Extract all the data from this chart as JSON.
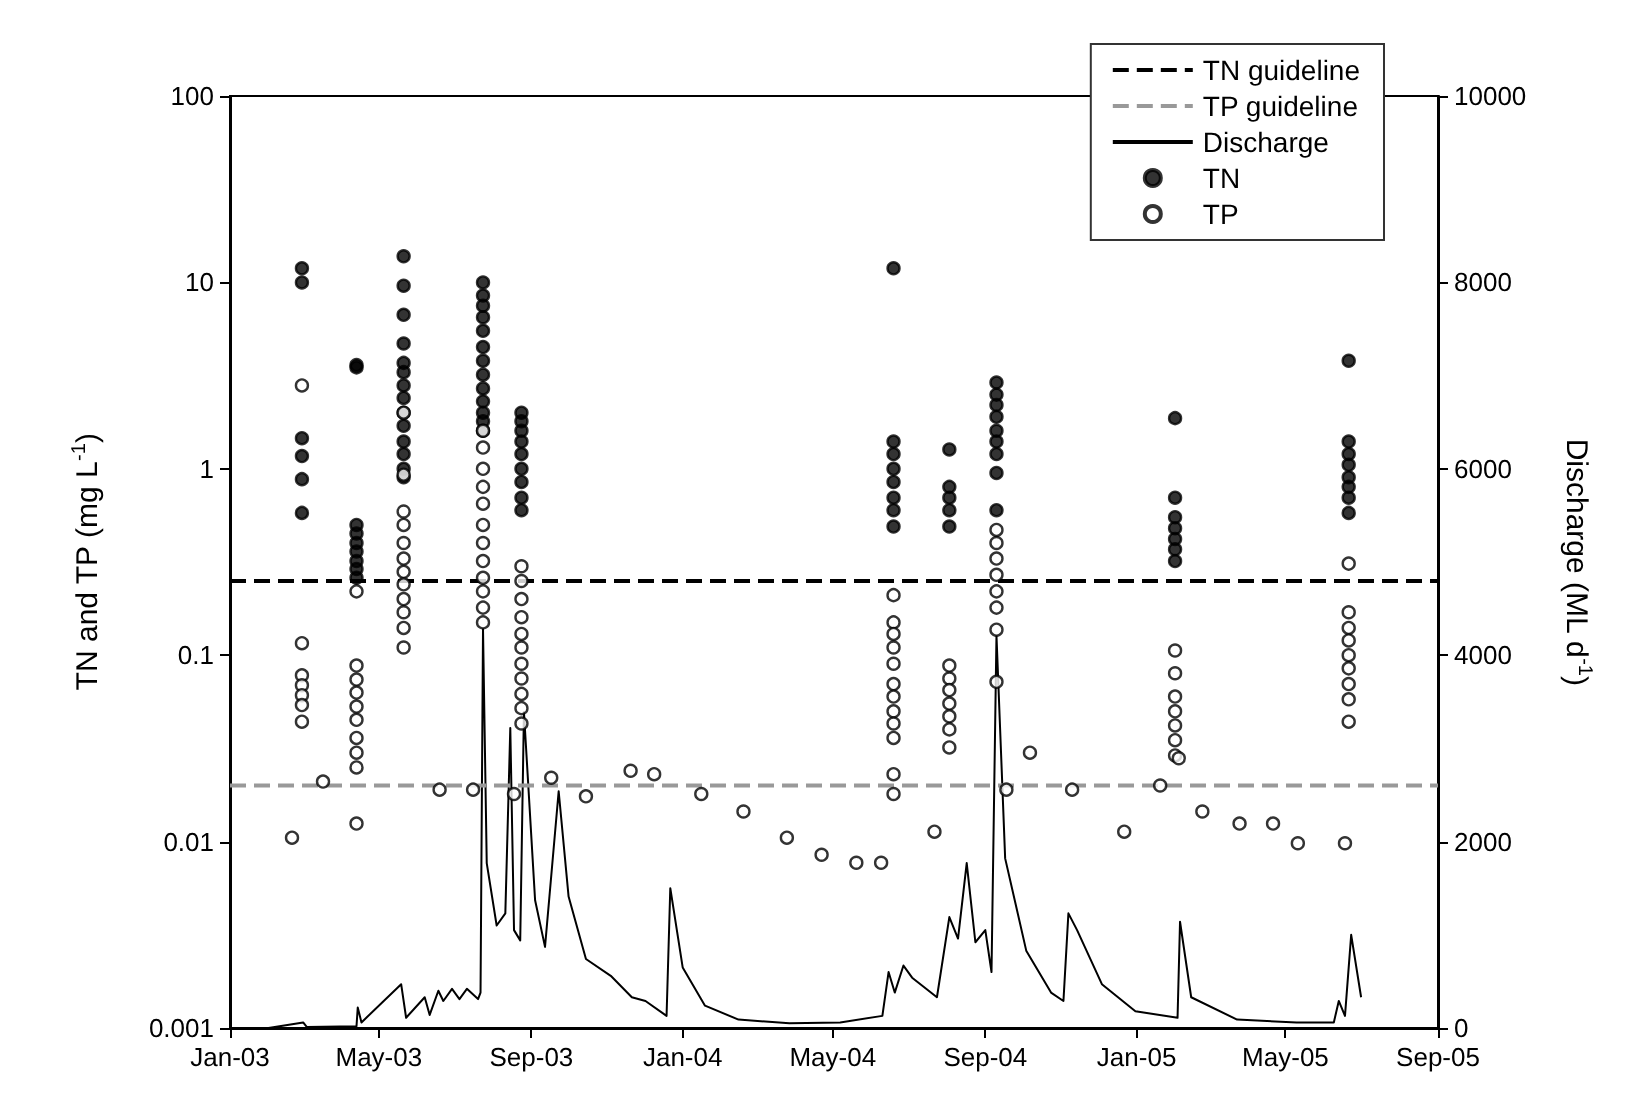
{
  "chart_data": {
    "type": "scatter",
    "ylabel": "TN and TP (mg L$^{-1}$)",
    "y2label": "Discharge (ML d$^{-1}$)",
    "log": "y",
    "grid": false,
    "legend": "top right",
    "xlim": [
      "2003-01-01",
      "2005-09-01"
    ],
    "xticks": [
      {
        "value": "2003-01-01",
        "label": "Jan-03"
      },
      {
        "value": "2003-05-01",
        "label": "May-03"
      },
      {
        "value": "2003-09-01",
        "label": "Sep-03"
      },
      {
        "value": "2004-01-01",
        "label": "Jan-04"
      },
      {
        "value": "2004-05-01",
        "label": "May-04"
      },
      {
        "value": "2004-09-01",
        "label": "Sep-04"
      },
      {
        "value": "2005-01-01",
        "label": "Jan-05"
      },
      {
        "value": "2005-05-01",
        "label": "May-05"
      },
      {
        "value": "2005-09-01",
        "label": "Sep-05"
      }
    ],
    "ylim": [
      0.001,
      100
    ],
    "yticks": [
      0.001,
      0.01,
      0.1,
      1,
      10,
      100
    ],
    "y2lim": [
      0,
      10000
    ],
    "y2ticks": [
      0,
      2000,
      4000,
      6000,
      8000,
      10000
    ],
    "ref_lines": [
      {
        "axis": "y",
        "value": 0.25,
        "label": "TN guideline",
        "color": "#000000",
        "line_style": "dashed"
      },
      {
        "axis": "y",
        "value": 0.02,
        "label": "TP guideline",
        "color": "#999999",
        "line_style": "dashed"
      }
    ],
    "series": [
      {
        "name": "Discharge",
        "type": "line",
        "axis": "y2",
        "color": "#000000",
        "marker": "none",
        "line_style": "solid",
        "x": [
          "2003-02-01",
          "2003-03-01",
          "2003-03-04",
          "2003-04-13",
          "2003-04-14",
          "2003-04-17",
          "2003-05-19",
          "2003-05-23",
          "2003-06-07",
          "2003-06-11",
          "2003-06-18",
          "2003-06-22",
          "2003-06-29",
          "2003-07-05",
          "2003-07-11",
          "2003-07-20",
          "2003-07-22",
          "2003-07-24",
          "2003-07-27",
          "2003-08-04",
          "2003-08-11",
          "2003-08-15",
          "2003-08-18",
          "2003-08-23",
          "2003-08-26",
          "2003-09-04",
          "2003-09-12",
          "2003-09-23",
          "2003-10-01",
          "2003-10-15",
          "2003-11-04",
          "2003-11-21",
          "2003-12-02",
          "2003-12-19",
          "2003-12-22",
          "2004-01-01",
          "2004-01-19",
          "2004-02-15",
          "2004-03-27",
          "2004-05-07",
          "2004-06-10",
          "2004-06-15",
          "2004-06-20",
          "2004-06-27",
          "2004-07-04",
          "2004-07-24",
          "2004-08-03",
          "2004-08-10",
          "2004-08-17",
          "2004-08-24",
          "2004-09-01",
          "2004-09-06",
          "2004-09-10",
          "2004-09-17",
          "2004-10-04",
          "2004-10-24",
          "2004-11-03",
          "2004-11-07",
          "2004-11-14",
          "2004-12-04",
          "2004-12-31",
          "2005-02-03",
          "2005-02-05",
          "2005-02-14",
          "2005-03-23",
          "2005-05-10",
          "2005-06-09",
          "2005-06-13",
          "2005-06-18",
          "2005-06-23",
          "2005-07-01"
        ],
        "values": [
          0,
          60,
          10,
          20,
          220,
          60,
          470,
          110,
          330,
          140,
          400,
          290,
          420,
          310,
          420,
          310,
          380,
          4280,
          1770,
          1100,
          1230,
          3220,
          1050,
          940,
          3390,
          1370,
          870,
          2540,
          1410,
          740,
          560,
          330,
          290,
          130,
          1500,
          650,
          240,
          90,
          50,
          60,
          130,
          600,
          380,
          670,
          540,
          330,
          1190,
          960,
          1770,
          920,
          1050,
          600,
          4210,
          1820,
          830,
          380,
          290,
          1230,
          1050,
          470,
          180,
          110,
          1140,
          330,
          90,
          60,
          60,
          290,
          130,
          1000,
          330
        ]
      },
      {
        "name": "TN",
        "color": "#000000",
        "marker": "circle",
        "x": [
          "2003-02-28",
          "2003-02-28",
          "2003-02-28",
          "2003-02-28",
          "2003-02-28",
          "2003-02-28",
          "2003-04-13",
          "2003-04-13",
          "2003-04-13",
          "2003-04-13",
          "2003-04-13",
          "2003-04-13",
          "2003-04-13",
          "2003-04-13",
          "2003-04-13",
          "2003-05-21",
          "2003-05-21",
          "2003-05-21",
          "2003-05-21",
          "2003-05-21",
          "2003-05-21",
          "2003-05-21",
          "2003-05-21",
          "2003-05-21",
          "2003-05-21",
          "2003-05-21",
          "2003-05-21",
          "2003-05-21",
          "2003-05-21",
          "2003-07-24",
          "2003-07-24",
          "2003-07-24",
          "2003-07-24",
          "2003-07-24",
          "2003-07-24",
          "2003-07-24",
          "2003-07-24",
          "2003-07-24",
          "2003-07-24",
          "2003-07-24",
          "2003-07-24",
          "2003-07-24",
          "2003-08-24",
          "2003-08-24",
          "2003-08-24",
          "2003-08-24",
          "2003-08-24",
          "2003-08-24",
          "2003-08-24",
          "2003-08-24",
          "2003-08-24",
          "2004-06-19",
          "2004-06-19",
          "2004-06-19",
          "2004-06-19",
          "2004-06-19",
          "2004-06-19",
          "2004-06-19",
          "2004-06-19",
          "2004-08-03",
          "2004-08-03",
          "2004-08-03",
          "2004-08-03",
          "2004-08-03",
          "2004-09-10",
          "2004-09-10",
          "2004-09-10",
          "2004-09-10",
          "2004-09-10",
          "2004-09-10",
          "2004-09-10",
          "2004-09-10",
          "2004-09-10",
          "2005-02-01",
          "2005-02-01",
          "2005-02-01",
          "2005-02-01",
          "2005-02-01",
          "2005-02-01",
          "2005-02-01",
          "2005-06-21",
          "2005-06-21",
          "2005-06-21",
          "2005-06-21",
          "2005-06-21",
          "2005-06-21",
          "2005-06-21",
          "2005-06-21"
        ],
        "values": [
          11.9,
          10,
          1.46,
          1.17,
          0.88,
          0.58,
          3.6,
          3.5,
          0.5,
          0.45,
          0.4,
          0.36,
          0.32,
          0.29,
          0.26,
          13.8,
          9.6,
          6.7,
          4.7,
          3.7,
          3.3,
          2.8,
          2.4,
          2,
          1.7,
          1.4,
          1.2,
          1,
          0.9,
          10,
          8.5,
          7.5,
          6.5,
          5.5,
          4.5,
          3.8,
          3.2,
          2.7,
          2.3,
          2,
          1.8,
          1.6,
          2,
          1.8,
          1.6,
          1.4,
          1.2,
          1,
          0.85,
          0.7,
          0.6,
          11.9,
          1.4,
          1.2,
          1,
          0.85,
          0.7,
          0.6,
          0.49,
          1.27,
          0.8,
          0.7,
          0.6,
          0.49,
          2.9,
          2.5,
          2.2,
          1.9,
          1.6,
          1.4,
          1.2,
          0.95,
          0.6,
          1.87,
          0.7,
          0.55,
          0.48,
          0.42,
          0.37,
          0.32,
          3.8,
          1.4,
          1.2,
          1.05,
          0.9,
          0.8,
          0.7,
          0.58
        ]
      },
      {
        "name": "TP",
        "color": "#ffffff",
        "marker": "circle",
        "x": [
          "2003-02-20",
          "2003-02-28",
          "2003-02-28",
          "2003-02-28",
          "2003-02-28",
          "2003-02-28",
          "2003-02-28",
          "2003-02-28",
          "2003-03-17",
          "2003-04-13",
          "2003-04-13",
          "2003-04-13",
          "2003-04-13",
          "2003-04-13",
          "2003-04-13",
          "2003-04-13",
          "2003-04-13",
          "2003-04-13",
          "2003-04-13",
          "2003-05-21",
          "2003-05-21",
          "2003-05-21",
          "2003-05-21",
          "2003-05-21",
          "2003-05-21",
          "2003-05-21",
          "2003-05-21",
          "2003-05-21",
          "2003-05-21",
          "2003-05-21",
          "2003-05-21",
          "2003-06-19",
          "2003-07-16",
          "2003-07-24",
          "2003-07-24",
          "2003-07-24",
          "2003-07-24",
          "2003-07-24",
          "2003-07-24",
          "2003-07-24",
          "2003-07-24",
          "2003-07-24",
          "2003-07-24",
          "2003-07-24",
          "2003-07-24",
          "2003-08-18",
          "2003-08-24",
          "2003-08-24",
          "2003-08-24",
          "2003-08-24",
          "2003-08-24",
          "2003-08-24",
          "2003-08-24",
          "2003-08-24",
          "2003-08-24",
          "2003-08-24",
          "2003-08-24",
          "2003-09-17",
          "2003-10-15",
          "2003-11-20",
          "2003-12-09",
          "2004-01-16",
          "2004-02-19",
          "2004-03-25",
          "2004-04-22",
          "2004-05-20",
          "2004-06-09",
          "2004-06-19",
          "2004-06-19",
          "2004-06-19",
          "2004-06-19",
          "2004-06-19",
          "2004-06-19",
          "2004-06-19",
          "2004-06-19",
          "2004-06-19",
          "2004-06-19",
          "2004-06-19",
          "2004-06-19",
          "2004-07-22",
          "2004-08-03",
          "2004-08-03",
          "2004-08-03",
          "2004-08-03",
          "2004-08-03",
          "2004-08-03",
          "2004-08-03",
          "2004-09-10",
          "2004-09-10",
          "2004-09-10",
          "2004-09-10",
          "2004-09-10",
          "2004-09-10",
          "2004-09-10",
          "2004-09-10",
          "2004-09-18",
          "2004-10-07",
          "2004-11-10",
          "2004-12-22",
          "2005-01-20",
          "2005-02-01",
          "2005-02-01",
          "2005-02-01",
          "2005-02-01",
          "2005-02-01",
          "2005-02-01",
          "2005-02-01",
          "2005-02-04",
          "2005-02-23",
          "2005-03-25",
          "2005-04-21",
          "2005-05-11",
          "2005-06-18",
          "2005-06-21",
          "2005-06-21",
          "2005-06-21",
          "2005-06-21",
          "2005-06-21",
          "2005-06-21",
          "2005-06-21",
          "2005-06-21",
          "2005-06-21"
        ],
        "values": [
          0.0105,
          2.8,
          0.116,
          0.078,
          0.069,
          0.061,
          0.054,
          0.044,
          0.021,
          0.22,
          0.088,
          0.074,
          0.063,
          0.053,
          0.045,
          0.036,
          0.03,
          0.025,
          0.0125,
          2,
          0.93,
          0.59,
          0.5,
          0.4,
          0.33,
          0.28,
          0.24,
          0.2,
          0.17,
          0.14,
          0.11,
          0.019,
          0.019,
          1.6,
          1.3,
          1,
          0.8,
          0.65,
          0.5,
          0.4,
          0.32,
          0.26,
          0.22,
          0.18,
          0.15,
          0.018,
          0.3,
          0.25,
          0.2,
          0.16,
          0.13,
          0.11,
          0.09,
          0.075,
          0.062,
          0.052,
          0.043,
          0.022,
          0.0175,
          0.024,
          0.023,
          0.018,
          0.0145,
          0.0105,
          0.0085,
          0.0077,
          0.0077,
          0.21,
          0.15,
          0.13,
          0.11,
          0.09,
          0.07,
          0.06,
          0.05,
          0.043,
          0.036,
          0.023,
          0.018,
          0.0113,
          0.088,
          0.075,
          0.065,
          0.055,
          0.047,
          0.04,
          0.032,
          0.47,
          0.4,
          0.33,
          0.27,
          0.22,
          0.18,
          0.137,
          0.072,
          0.019,
          0.03,
          0.019,
          0.0113,
          0.02,
          0.106,
          0.08,
          0.06,
          0.05,
          0.042,
          0.035,
          0.029,
          0.028,
          0.0145,
          0.0125,
          0.0125,
          0.0098,
          0.0098,
          0.31,
          0.17,
          0.14,
          0.12,
          0.1,
          0.085,
          0.07,
          0.058,
          0.044
        ]
      }
    ]
  }
}
